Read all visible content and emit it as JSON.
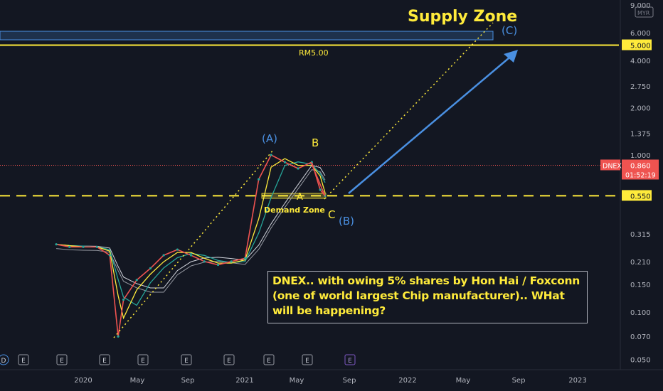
{
  "chart_data": {
    "type": "line",
    "symbol": "DNEX",
    "currency": "MYR",
    "last_price": "0.860",
    "countdown": "01:52:19",
    "price_axis_ticks": [
      "9.000",
      "6.000",
      "5.000",
      "4.000",
      "2.750",
      "2.000",
      "1.375",
      "1.000",
      "0.860",
      "0.550",
      "0.315",
      "0.210",
      "0.150",
      "0.100",
      "0.070",
      "0.050"
    ],
    "time_axis_ticks": [
      "2020",
      "May",
      "Sep",
      "2021",
      "May",
      "Sep",
      "2022",
      "May",
      "Sep",
      "2023"
    ],
    "earnings_markers": [
      "D",
      "E",
      "E",
      "E",
      "E",
      "E",
      "E",
      "E",
      "E",
      "E"
    ],
    "series": [
      {
        "name": "",
        "x": [
          "2019-11",
          "2019-12",
          "2020-01",
          "2020-02",
          "2020-03",
          "2020-03-20",
          "2020-04",
          "2020-05",
          "2020-06",
          "2020-07",
          "2020-08",
          "2020-09",
          "2020-10",
          "2020-11",
          "2020-12",
          "2021-01",
          "2021-02",
          "2021-03",
          "2021-04",
          "2021-05",
          "2021-06",
          "2021-06-20",
          "2021-07"
        ],
        "values": [
          0.27,
          0.26,
          0.26,
          0.26,
          0.23,
          0.07,
          0.12,
          0.16,
          0.19,
          0.23,
          0.25,
          0.23,
          0.21,
          0.2,
          0.21,
          0.22,
          0.7,
          1.0,
          0.9,
          0.82,
          0.9,
          0.6,
          0.55
        ]
      }
    ],
    "levels": [
      {
        "label": "5.000",
        "value": 5.0,
        "style": "solid"
      },
      {
        "label": "0.550",
        "value": 0.55,
        "style": "dashed"
      }
    ],
    "annotations": {
      "supply_zone": "Supply Zone",
      "rm_label": "RM5.00",
      "wave_A": "(A)",
      "wave_B": "B",
      "wave_C": "(C)",
      "wave_paren_B": "(B)",
      "small_A": "A",
      "small_C": "C",
      "demand_zone": "Demand Zone",
      "note": "DNEX.. with owing 5% shares by Hon Hai / Foxconn (one of world largest Chip manufacturer).. WHat will be happening?"
    }
  },
  "colors": {
    "background": "#131722",
    "yellow": "#ffeb3b",
    "blue": "#4a90e2",
    "price_line": "#ef5350"
  }
}
